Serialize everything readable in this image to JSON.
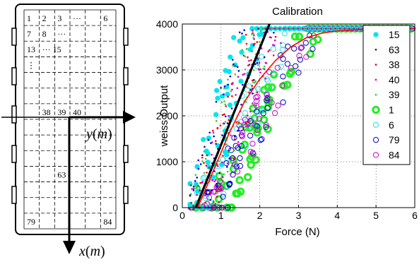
{
  "sensor_diagram": {
    "cell_labels": [
      {
        "text": "1",
        "row": 0,
        "col": 0
      },
      {
        "text": "2",
        "row": 0,
        "col": 1
      },
      {
        "text": "3",
        "row": 0,
        "col": 2
      },
      {
        "text": "···",
        "row": 0,
        "col": 3
      },
      {
        "text": "6",
        "row": 0,
        "col": 5
      },
      {
        "text": "7",
        "row": 1,
        "col": 0
      },
      {
        "text": "8",
        "row": 1,
        "col": 1
      },
      {
        "text": "···",
        "row": 1,
        "col": 2
      },
      {
        "text": "13",
        "row": 2,
        "col": 0
      },
      {
        "text": "··· 15",
        "row": 2,
        "col": 1
      },
      {
        "text": "⋮",
        "row": 3,
        "col": 0
      },
      {
        "text": "38",
        "row": 6,
        "col": 1
      },
      {
        "text": "39",
        "row": 6,
        "col": 2
      },
      {
        "text": "40",
        "row": 6,
        "col": 3
      },
      {
        "text": "63",
        "row": 10,
        "col": 2
      },
      {
        "text": "79",
        "row": 13,
        "col": 0
      },
      {
        "text": "84",
        "row": 13,
        "col": 5
      }
    ],
    "y_axis_label": "y",
    "x_axis_label": "x",
    "unit": "m"
  },
  "chart_data": {
    "type": "scatter",
    "title": "Calibration",
    "xlabel": "Force (N)",
    "ylabel": "weiss Output",
    "xlim": [
      0,
      6
    ],
    "ylim": [
      0,
      4000
    ],
    "x_ticks": [
      0,
      1,
      2,
      3,
      4,
      5,
      6
    ],
    "y_ticks": [
      0,
      1000,
      2000,
      3000,
      4000
    ],
    "grid": true,
    "legend_position": "right",
    "saturation": 3900,
    "series": [
      {
        "name": "15",
        "color": "#00e5ee",
        "marker": "filled-circle",
        "onset": 0.3,
        "slope": 2600
      },
      {
        "name": "63",
        "color": "#0000cc",
        "marker": "dot",
        "onset": 0.4,
        "slope": 2500
      },
      {
        "name": "38",
        "color": "#ee0000",
        "marker": "dot",
        "onset": 0.45,
        "slope": 2300
      },
      {
        "name": "40",
        "color": "#cc00cc",
        "marker": "dot",
        "onset": 0.5,
        "slope": 2200
      },
      {
        "name": "39",
        "color": "#33cc33",
        "marker": "dot",
        "onset": 0.45,
        "slope": 2400
      },
      {
        "name": "1",
        "color": "#22ee22",
        "marker": "thick-ring",
        "onset": 0.9,
        "slope": 1650
      },
      {
        "name": "6",
        "color": "#33dddd",
        "marker": "ring",
        "onset": 0.6,
        "slope": 1900
      },
      {
        "name": "79",
        "color": "#0000bb",
        "marker": "ring",
        "onset": 0.7,
        "slope": 1500
      },
      {
        "name": "84",
        "color": "#cc00cc",
        "marker": "ring",
        "onset": 0.75,
        "slope": 1600
      }
    ],
    "fit_lines": [
      {
        "color": "#000000",
        "x": [
          0.35,
          2.25
        ],
        "y": [
          0,
          4000
        ]
      },
      {
        "color": "#ff0000",
        "x": [
          0.4,
          0.8,
          1.2,
          1.6,
          2.0,
          2.4,
          2.8,
          3.2,
          3.6,
          4.0,
          5.0,
          6.0
        ],
        "y": [
          0,
          800,
          1600,
          2300,
          2800,
          3200,
          3500,
          3700,
          3800,
          3850,
          3900,
          3900
        ]
      }
    ]
  }
}
